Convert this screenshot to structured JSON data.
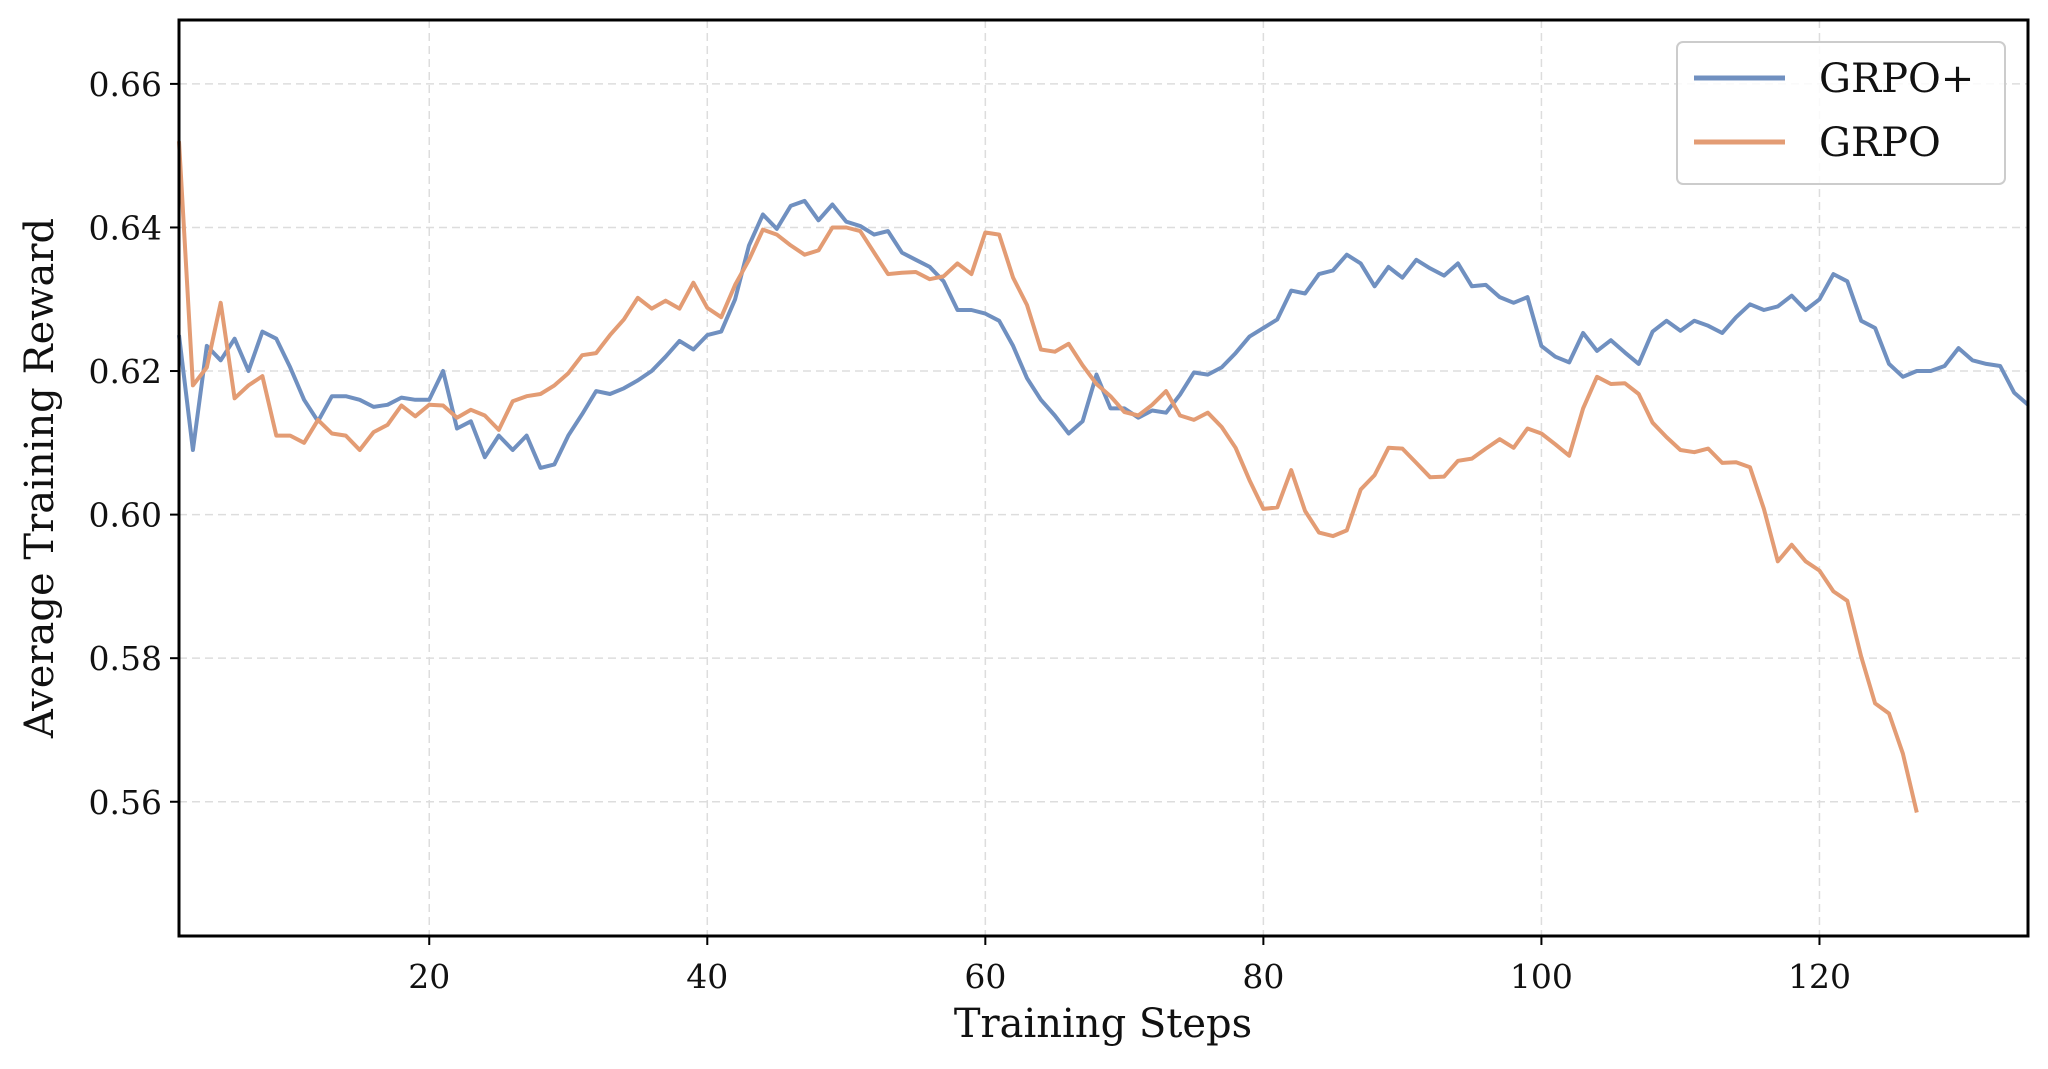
{
  "chart_data": {
    "type": "line",
    "title": "",
    "xlabel": "Training Steps",
    "ylabel": "Average Training Reward",
    "xlim": [
      2,
      135
    ],
    "ylim": [
      0.5413,
      0.6689
    ],
    "xticks": [
      20,
      40,
      60,
      80,
      100,
      120
    ],
    "yticks": [
      0.56,
      0.58,
      0.6,
      0.62,
      0.64,
      0.66
    ],
    "ytick_labels": [
      "0.56",
      "0.58",
      "0.60",
      "0.62",
      "0.64",
      "0.66"
    ],
    "grid": true,
    "legend_placement": "top-right",
    "series": [
      {
        "name": "GRPO+",
        "color": "#7090c0",
        "x_start": 2,
        "values": [
          0.625,
          0.609,
          0.6235,
          0.6215,
          0.6245,
          0.62,
          0.6255,
          0.6245,
          0.6205,
          0.616,
          0.613,
          0.6165,
          0.6165,
          0.616,
          0.615,
          0.6153,
          0.6163,
          0.616,
          0.616,
          0.62,
          0.612,
          0.613,
          0.608,
          0.611,
          0.609,
          0.611,
          0.6065,
          0.607,
          0.611,
          0.614,
          0.6172,
          0.6168,
          0.6176,
          0.6187,
          0.62,
          0.622,
          0.6242,
          0.623,
          0.625,
          0.6255,
          0.63,
          0.6375,
          0.6418,
          0.6398,
          0.643,
          0.6437,
          0.641,
          0.6432,
          0.6408,
          0.6402,
          0.639,
          0.6395,
          0.6365,
          0.6355,
          0.6345,
          0.6325,
          0.6285,
          0.6285,
          0.628,
          0.627,
          0.6235,
          0.619,
          0.616,
          0.6138,
          0.6113,
          0.613,
          0.6195,
          0.6148,
          0.6148,
          0.6135,
          0.6145,
          0.6142,
          0.6167,
          0.6198,
          0.6195,
          0.6205,
          0.6225,
          0.6248,
          0.626,
          0.6272,
          0.6312,
          0.6308,
          0.6335,
          0.634,
          0.6362,
          0.635,
          0.6318,
          0.6345,
          0.633,
          0.6355,
          0.6343,
          0.6333,
          0.635,
          0.6318,
          0.632,
          0.6303,
          0.6295,
          0.6303,
          0.6235,
          0.622,
          0.6212,
          0.6253,
          0.6228,
          0.6243,
          0.6226,
          0.621,
          0.6255,
          0.627,
          0.6256,
          0.627,
          0.6263,
          0.6253,
          0.6275,
          0.6293,
          0.6285,
          0.629,
          0.6305,
          0.6285,
          0.63,
          0.6335,
          0.6325,
          0.627,
          0.626,
          0.621,
          0.6192,
          0.62,
          0.62,
          0.6207,
          0.6232,
          0.6215,
          0.621,
          0.6207,
          0.617,
          0.6153
        ]
      },
      {
        "name": "GRPO",
        "color": "#e39c74",
        "x_start": 2,
        "values": [
          0.652,
          0.618,
          0.6205,
          0.6295,
          0.6162,
          0.618,
          0.6193,
          0.611,
          0.611,
          0.61,
          0.6132,
          0.6113,
          0.611,
          0.609,
          0.6115,
          0.6125,
          0.6152,
          0.6137,
          0.6153,
          0.6152,
          0.6135,
          0.6146,
          0.6138,
          0.6118,
          0.6158,
          0.6165,
          0.6168,
          0.618,
          0.6197,
          0.6222,
          0.6225,
          0.625,
          0.6272,
          0.6302,
          0.6287,
          0.6298,
          0.6287,
          0.6323,
          0.6288,
          0.6275,
          0.632,
          0.6355,
          0.6397,
          0.639,
          0.6375,
          0.6362,
          0.6368,
          0.64,
          0.64,
          0.6395,
          0.6365,
          0.6335,
          0.6337,
          0.6338,
          0.6328,
          0.6332,
          0.635,
          0.6335,
          0.6393,
          0.639,
          0.633,
          0.6292,
          0.623,
          0.6227,
          0.6238,
          0.6208,
          0.6182,
          0.6165,
          0.6143,
          0.6138,
          0.6153,
          0.6172,
          0.6138,
          0.6132,
          0.6142,
          0.6122,
          0.6093,
          0.6048,
          0.6008,
          0.601,
          0.6062,
          0.6005,
          0.5975,
          0.597,
          0.5978,
          0.6035,
          0.6055,
          0.6093,
          0.6092,
          0.6072,
          0.6052,
          0.6053,
          0.6075,
          0.6078,
          0.6092,
          0.6105,
          0.6093,
          0.612,
          0.6113,
          0.6098,
          0.6082,
          0.6148,
          0.6192,
          0.6182,
          0.6183,
          0.6168,
          0.6128,
          0.6108,
          0.609,
          0.6087,
          0.6092,
          0.6072,
          0.6073,
          0.6066,
          0.6008,
          0.5935,
          0.5958,
          0.5935,
          0.5922,
          0.5893,
          0.588,
          0.5802,
          0.5737,
          0.5723,
          0.5667,
          0.5585
        ]
      }
    ]
  }
}
